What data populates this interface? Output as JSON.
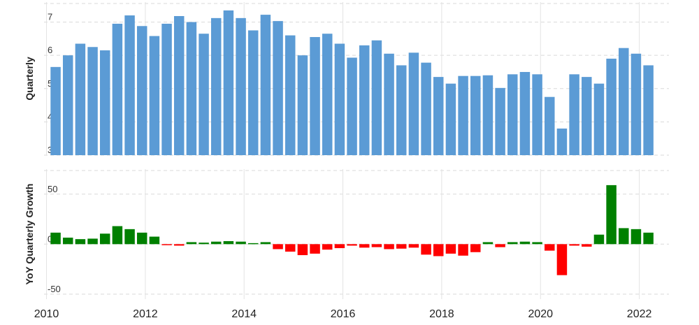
{
  "chart_data": [
    {
      "type": "bar",
      "ylabel": "Quarterly",
      "ylim": [
        3,
        7.6
      ],
      "yticks": [
        "3",
        "4",
        "5",
        "6",
        "7"
      ],
      "grid": true,
      "color": "#5b9bd5",
      "x": [
        "2010-03",
        "2010-06",
        "2010-09",
        "2010-12",
        "2011-03",
        "2011-06",
        "2011-09",
        "2011-12",
        "2012-03",
        "2012-06",
        "2012-09",
        "2012-12",
        "2013-03",
        "2013-06",
        "2013-09",
        "2013-12",
        "2014-03",
        "2014-06",
        "2014-09",
        "2014-12",
        "2015-03",
        "2015-06",
        "2015-09",
        "2015-12",
        "2016-03",
        "2016-06",
        "2016-09",
        "2016-12",
        "2017-03",
        "2017-06",
        "2017-09",
        "2017-12",
        "2018-03",
        "2018-06",
        "2018-09",
        "2018-12",
        "2019-03",
        "2019-06",
        "2019-09",
        "2019-12",
        "2020-03",
        "2020-06",
        "2020-09",
        "2020-12",
        "2021-03",
        "2021-06",
        "2021-09",
        "2021-12",
        "2022-03"
      ],
      "values": [
        5.65,
        6.0,
        6.35,
        6.25,
        6.15,
        6.95,
        7.2,
        6.88,
        6.58,
        6.95,
        7.18,
        7.0,
        6.65,
        7.12,
        7.35,
        7.12,
        6.75,
        7.22,
        7.03,
        6.6,
        6.0,
        6.55,
        6.65,
        6.35,
        5.93,
        6.3,
        6.45,
        6.05,
        5.7,
        6.08,
        5.78,
        5.35,
        5.15,
        5.38,
        5.38,
        5.4,
        5.02,
        5.43,
        5.5,
        5.43,
        4.75,
        3.8,
        5.43,
        5.35,
        5.15,
        5.9,
        6.22,
        6.05,
        5.7
      ]
    },
    {
      "type": "bar",
      "ylabel": "YoY Quarterly Growth",
      "ylim": [
        -55,
        75
      ],
      "yticks": [
        "-50",
        "0",
        "50"
      ],
      "grid": true,
      "positive_color": "#008000",
      "negative_color": "#ff0000",
      "x": [
        "2010-03",
        "2010-06",
        "2010-09",
        "2010-12",
        "2011-03",
        "2011-06",
        "2011-09",
        "2011-12",
        "2012-03",
        "2012-06",
        "2012-09",
        "2012-12",
        "2013-03",
        "2013-06",
        "2013-09",
        "2013-12",
        "2014-03",
        "2014-06",
        "2014-09",
        "2014-12",
        "2015-03",
        "2015-06",
        "2015-09",
        "2015-12",
        "2016-03",
        "2016-06",
        "2016-09",
        "2016-12",
        "2017-03",
        "2017-06",
        "2017-09",
        "2017-12",
        "2018-03",
        "2018-06",
        "2018-09",
        "2018-12",
        "2019-03",
        "2019-06",
        "2019-09",
        "2019-12",
        "2020-03",
        "2020-06",
        "2020-09",
        "2020-12",
        "2021-03",
        "2021-06",
        "2021-09",
        "2021-12",
        "2022-03"
      ],
      "values": [
        11.5,
        6.5,
        5,
        5.5,
        10.5,
        18,
        15,
        11.5,
        7.5,
        -0.5,
        -1.5,
        2,
        1.5,
        2.5,
        3,
        2.5,
        1,
        2,
        -5,
        -7.5,
        -11,
        -9.5,
        -5.5,
        -4,
        -1.5,
        -3.5,
        -3,
        -5,
        -4.5,
        -3.5,
        -10.5,
        -12,
        -9.5,
        -11.5,
        -8,
        2,
        -3,
        2,
        2.5,
        2,
        -6.5,
        -31,
        -1.5,
        -2.5,
        9.5,
        59,
        16,
        15,
        11.5
      ]
    }
  ],
  "x_axis": {
    "tick_labels": [
      "2010",
      "2012",
      "2014",
      "2016",
      "2018",
      "2020",
      "2022"
    ]
  }
}
